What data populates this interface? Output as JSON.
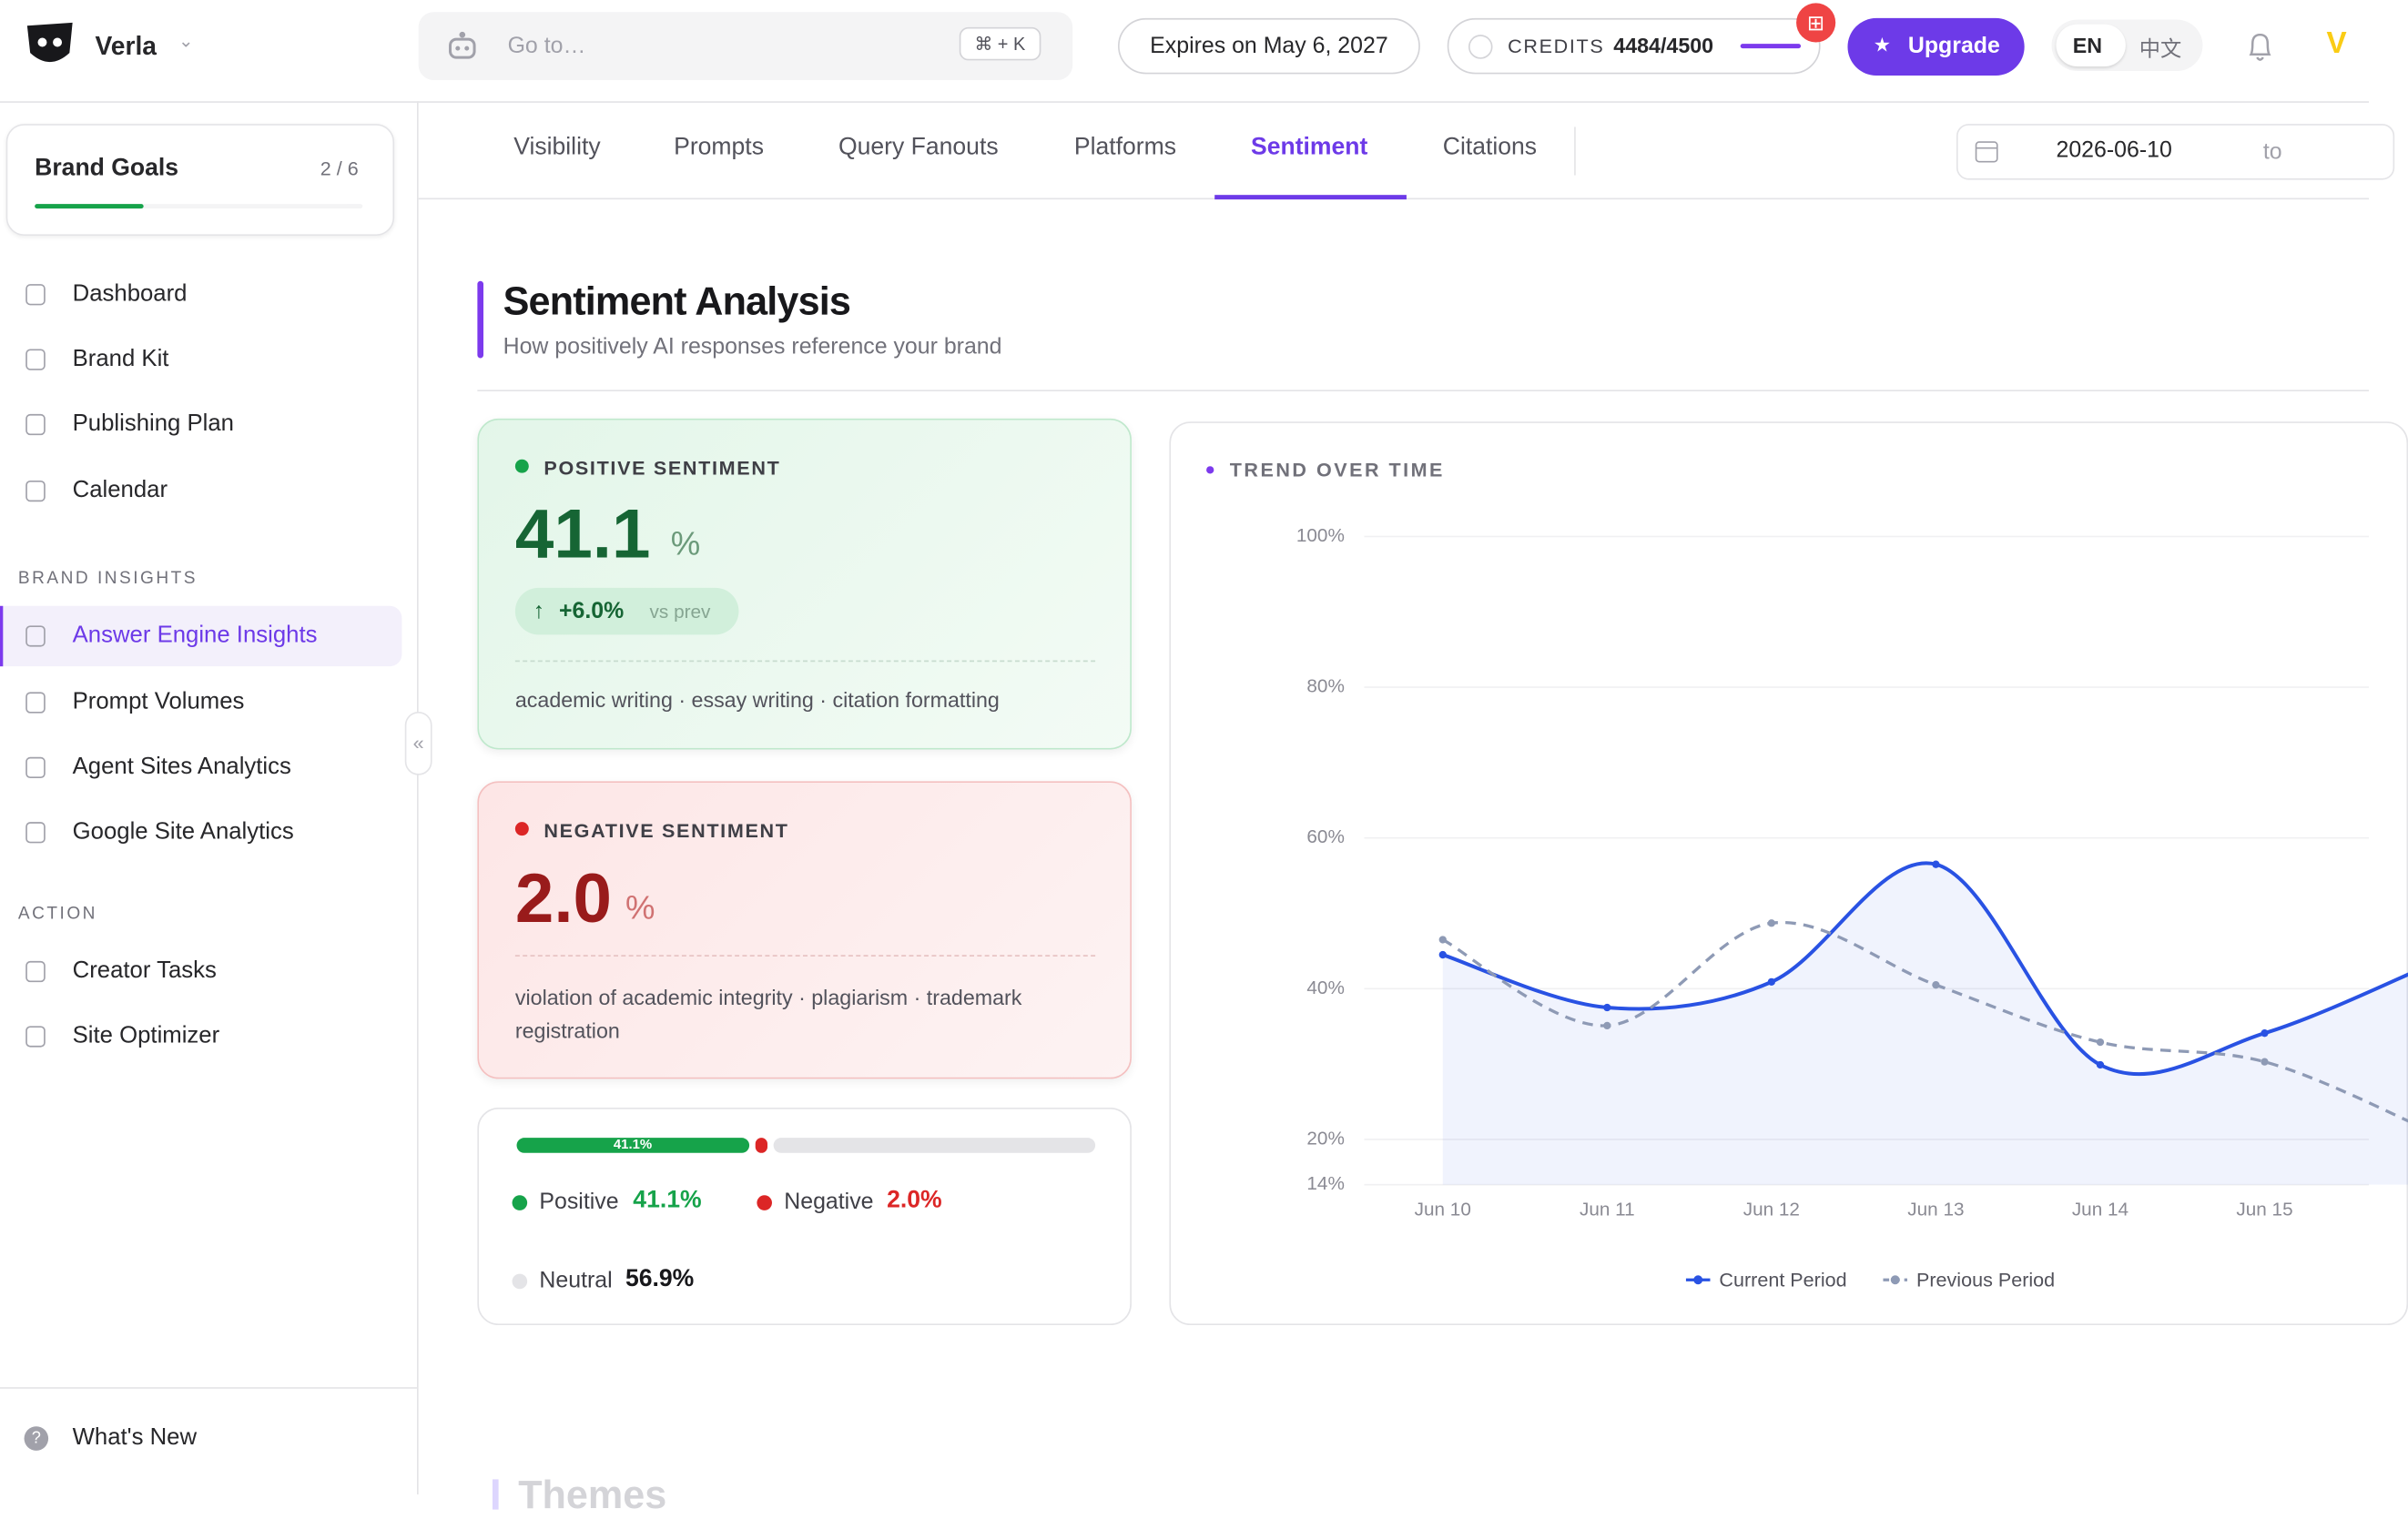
{
  "header": {
    "brand": "Verla",
    "search_placeholder": "Go to…",
    "shortcut": "⌘ + K",
    "expiry": "Expires on May 6, 2027",
    "credits_label": "CREDITS",
    "credits": "4484/4500",
    "upgrade": "Upgrade",
    "languages": [
      "EN",
      "中文"
    ]
  },
  "sidebar": {
    "goals": {
      "title": "Brand Goals",
      "progress": "2 / 6"
    },
    "main": [
      "Dashboard",
      "Brand Kit",
      "Publishing Plan",
      "Calendar"
    ],
    "sections": [
      {
        "title": "BRAND INSIGHTS",
        "items": [
          "Answer Engine Insights",
          "Prompt Volumes",
          "Agent Sites Analytics",
          "Google Site Analytics"
        ]
      },
      {
        "title": "ACTION",
        "items": [
          "Creator Tasks",
          "Site Optimizer"
        ]
      }
    ],
    "footer": "What's New"
  },
  "tabs": [
    "Visibility",
    "Prompts",
    "Query Fanouts",
    "Platforms",
    "Sentiment",
    "Citations"
  ],
  "date_range": {
    "start": "2026-06-10",
    "separator": "to"
  },
  "section": {
    "title": "Sentiment Analysis",
    "subtitle": "How positively AI responses reference your brand"
  },
  "cards": {
    "positive": {
      "label": "POSITIVE SENTIMENT",
      "value": "41.1",
      "unit": "%",
      "change": "+6.0%",
      "change_note": "vs prev",
      "topics": "academic writing · essay writing · citation formatting"
    },
    "negative": {
      "label": "NEGATIVE SENTIMENT",
      "value": "2.0",
      "unit": "%",
      "topics": "violation of academic integrity · plagiarism · trademark registration"
    }
  },
  "breakdown": {
    "items": [
      {
        "name": "Positive",
        "value": 41.1,
        "label": "41.1%",
        "color": "#16a34a"
      },
      {
        "name": "Negative",
        "value": 2.0,
        "label": "2.0%",
        "color": "#dc2626"
      },
      {
        "name": "Neutral",
        "value": 56.9,
        "label": "56.9%",
        "color": "#e4e4e7"
      }
    ]
  },
  "chart_data": {
    "type": "line",
    "title": "TREND OVER TIME",
    "categories": [
      "Jun 10",
      "Jun 11",
      "Jun 12",
      "Jun 13",
      "Jun 14",
      "Jun 15",
      null
    ],
    "series": [
      {
        "name": "Current Period",
        "color": "#2952e3",
        "values": [
          44.5,
          37.5,
          40.9,
          56.5,
          29.9,
          34.1,
          43.1
        ]
      },
      {
        "name": "Previous Period",
        "color": "#8e9ab5",
        "dashed": true,
        "values": [
          46.5,
          35.1,
          48.7,
          40.5,
          32.9,
          30.3,
          21.2
        ]
      }
    ],
    "ylim": [
      14,
      100
    ],
    "yticks": [
      {
        "value": 14,
        "label": "14%"
      },
      {
        "value": 20,
        "label": "20%"
      },
      {
        "value": 40,
        "label": "40%"
      },
      {
        "value": 60,
        "label": "60%"
      },
      {
        "value": 80,
        "label": "80%"
      },
      {
        "value": 100,
        "label": "100%"
      }
    ],
    "grid": true,
    "legend": "bottom"
  },
  "next_section": {
    "title": "Themes"
  }
}
